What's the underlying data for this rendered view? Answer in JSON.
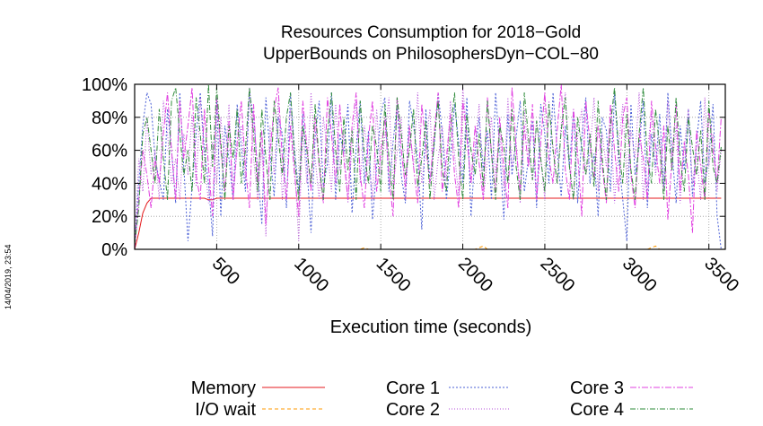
{
  "chart_data": {
    "type": "line",
    "title_lines": [
      "Resources Consumption for 2018−Gold",
      "UpperBounds on PhilosophersDyn−COL−80"
    ],
    "xlabel": "Execution time (seconds)",
    "ylabel": "",
    "xlim": [
      0,
      3600
    ],
    "ylim": [
      0,
      100
    ],
    "x_ticks": [
      500,
      1000,
      1500,
      2000,
      2500,
      3000,
      3500
    ],
    "y_ticks": [
      0,
      20,
      40,
      60,
      80,
      100
    ],
    "y_tick_labels": [
      "0%",
      "20%",
      "40%",
      "60%",
      "80%",
      "100%"
    ],
    "grid": true,
    "legend_position": "bottom",
    "x": [
      0,
      25,
      50,
      75,
      100,
      125,
      150,
      175,
      200,
      225,
      250,
      275,
      300,
      325,
      350,
      375,
      400,
      425,
      450,
      475,
      500,
      525,
      550,
      575,
      600,
      625,
      650,
      675,
      700,
      725,
      750,
      775,
      800,
      825,
      850,
      875,
      900,
      925,
      950,
      975,
      1000,
      1025,
      1050,
      1075,
      1100,
      1125,
      1150,
      1175,
      1200,
      1225,
      1250,
      1275,
      1300,
      1325,
      1350,
      1375,
      1400,
      1425,
      1450,
      1475,
      1500,
      1525,
      1550,
      1575,
      1600,
      1625,
      1650,
      1675,
      1700,
      1725,
      1750,
      1775,
      1800,
      1825,
      1850,
      1875,
      1900,
      1925,
      1950,
      1975,
      2000,
      2025,
      2050,
      2075,
      2100,
      2125,
      2150,
      2175,
      2200,
      2225,
      2250,
      2275,
      2300,
      2325,
      2350,
      2375,
      2400,
      2425,
      2450,
      2475,
      2500,
      2525,
      2550,
      2575,
      2600,
      2625,
      2650,
      2675,
      2700,
      2725,
      2750,
      2775,
      2800,
      2825,
      2850,
      2875,
      2900,
      2925,
      2950,
      2975,
      3000,
      3025,
      3050,
      3075,
      3100,
      3125,
      3150,
      3175,
      3200,
      3225,
      3250,
      3275,
      3300,
      3325,
      3350,
      3375,
      3400,
      3425,
      3450,
      3475,
      3500,
      3525,
      3550,
      3575
    ],
    "series": [
      {
        "name": "Memory",
        "color": "#e41a1c",
        "dash": "",
        "values": [
          0,
          10,
          22,
          28,
          31,
          31,
          31,
          31,
          31,
          31,
          31,
          31,
          31,
          31,
          31,
          31,
          31,
          31,
          30,
          30,
          31,
          31,
          31,
          31,
          31,
          31,
          31,
          31,
          31,
          31,
          31,
          31,
          31,
          31,
          31,
          31,
          31,
          31,
          31,
          31,
          31,
          31,
          31,
          31,
          31,
          31,
          31,
          31,
          31,
          31,
          31,
          31,
          31,
          31,
          31,
          31,
          31,
          31,
          31,
          31,
          31,
          31,
          31,
          31,
          31,
          31,
          31,
          31,
          31,
          31,
          31,
          31,
          31,
          31,
          31,
          31,
          31,
          31,
          31,
          31,
          31,
          31,
          31,
          31,
          31,
          31,
          31,
          31,
          31,
          31,
          31,
          31,
          31,
          31,
          31,
          31,
          31,
          31,
          31,
          31,
          31,
          31,
          31,
          31,
          31,
          31,
          31,
          31,
          31,
          31,
          31,
          31,
          31,
          31,
          31,
          31,
          31,
          31,
          31,
          31,
          31,
          31,
          31,
          31,
          31,
          31,
          31,
          31,
          31,
          31,
          31,
          31,
          31,
          31,
          31,
          31,
          31,
          31,
          31,
          31,
          31,
          31,
          31,
          31
        ]
      },
      {
        "name": "I/O wait",
        "color": "#ff9900",
        "dash": "4,3",
        "values": [
          0,
          0,
          0,
          0,
          0,
          0,
          0,
          0,
          0,
          0,
          0,
          0,
          0,
          0,
          0,
          0,
          0,
          0,
          0,
          0,
          0,
          0,
          0,
          0,
          0,
          0,
          0,
          0,
          0,
          0,
          0,
          0,
          0,
          0,
          0,
          0,
          0,
          0,
          0,
          0,
          0,
          0,
          0,
          0,
          0,
          0,
          0,
          0,
          0,
          0,
          0,
          0,
          0,
          0,
          0,
          0,
          1,
          0,
          0,
          0,
          0,
          0,
          0,
          0,
          0,
          0,
          0,
          0,
          0,
          0,
          0,
          0,
          0,
          0,
          0,
          0,
          0,
          0,
          0,
          0,
          0,
          0,
          0,
          0,
          1,
          2,
          0,
          0,
          0,
          0,
          0,
          0,
          0,
          0,
          0,
          0,
          0,
          0,
          0,
          0,
          0,
          0,
          0,
          0,
          0,
          0,
          0,
          0,
          0,
          0,
          0,
          0,
          0,
          0,
          0,
          0,
          0,
          0,
          0,
          0,
          0,
          0,
          0,
          0,
          0,
          0,
          1,
          2,
          0,
          0,
          0,
          0,
          0,
          0,
          0,
          0,
          0,
          0,
          0,
          0,
          0,
          0,
          0,
          0
        ]
      },
      {
        "name": "Core 1",
        "color": "#4a5fd6",
        "dash": "2,2",
        "values": [
          2,
          40,
          75,
          95,
          88,
          55,
          42,
          30,
          85,
          60,
          28,
          95,
          50,
          5,
          38,
          70,
          95,
          60,
          40,
          8,
          92,
          20,
          75,
          55,
          30,
          88,
          62,
          35,
          95,
          80,
          48,
          15,
          92,
          58,
          32,
          80,
          70,
          25,
          95,
          60,
          35,
          82,
          50,
          10,
          68,
          90,
          38,
          52,
          95,
          30,
          70,
          58,
          88,
          22,
          62,
          90,
          40,
          72,
          18,
          50,
          82,
          92,
          35,
          65,
          88,
          45,
          28,
          90,
          75,
          55,
          12,
          85,
          40,
          62,
          95,
          70,
          30,
          55,
          88,
          65,
          40,
          92,
          20,
          58,
          80,
          48,
          72,
          30,
          95,
          60,
          18,
          82,
          45,
          68,
          90,
          35,
          55,
          78,
          25,
          88,
          70,
          40,
          95,
          60,
          32,
          75,
          50,
          85,
          28,
          68,
          92,
          40,
          58,
          20,
          80,
          72,
          35,
          95,
          55,
          30,
          5,
          88,
          45,
          62,
          90,
          25,
          70,
          50,
          82,
          38,
          95,
          60,
          28,
          75,
          48,
          85,
          32,
          65,
          90,
          40,
          55,
          88,
          20,
          0
        ]
      },
      {
        "name": "Core 2",
        "color": "#b44fd9",
        "dash": "1,2",
        "values": [
          1,
          55,
          35,
          80,
          45,
          60,
          30,
          90,
          70,
          40,
          55,
          30,
          70,
          45,
          82,
          38,
          92,
          55,
          28,
          65,
          40,
          80,
          50,
          88,
          32,
          60,
          75,
          42,
          98,
          55,
          30,
          62,
          8,
          75,
          45,
          90,
          30,
          62,
          85,
          50,
          5,
          72,
          40,
          95,
          55,
          30,
          80,
          60,
          35,
          88,
          48,
          70,
          28,
          62,
          90,
          40,
          75,
          55,
          30,
          85,
          45,
          68,
          92,
          38,
          58,
          80,
          30,
          72,
          50,
          95,
          40,
          62,
          85,
          30,
          55,
          75,
          42,
          90,
          58,
          32,
          98,
          70,
          40,
          62,
          88,
          30,
          55,
          80,
          45,
          72,
          35,
          92,
          50,
          65,
          28,
          85,
          60,
          42,
          78,
          55,
          30,
          90,
          62,
          40,
          75,
          95,
          50,
          30,
          68,
          85,
          45,
          58,
          92,
          35,
          70,
          50,
          80,
          28,
          62,
          88,
          40,
          72,
          55,
          95,
          30,
          60,
          82,
          45,
          68,
          35,
          90,
          50,
          75,
          28,
          62,
          85,
          40,
          58,
          30,
          92,
          50,
          70,
          35,
          60
        ]
      },
      {
        "name": "Core 3",
        "color": "#e040e0",
        "dash": "7,2,2,2",
        "values": [
          0,
          30,
          60,
          45,
          25,
          55,
          40,
          70,
          95,
          60,
          30,
          90,
          55,
          75,
          98,
          45,
          30,
          85,
          50,
          20,
          92,
          60,
          35,
          78,
          30,
          65,
          90,
          50,
          25,
          88,
          40,
          72,
          15,
          60,
          85,
          98,
          55,
          30,
          75,
          45,
          20,
          90,
          62,
          35,
          80,
          50,
          28,
          92,
          70,
          40,
          88,
          55,
          30,
          75,
          95,
          45,
          25,
          68,
          90,
          35,
          58,
          80,
          45,
          20,
          92,
          60,
          38,
          75,
          50,
          28,
          88,
          62,
          40,
          70,
          95,
          35,
          55,
          82,
          45,
          25,
          90,
          68,
          40,
          75,
          52,
          30,
          92,
          58,
          35,
          80,
          48,
          25,
          98,
          62,
          35,
          75,
          50,
          88,
          30,
          65,
          95,
          55,
          40,
          72,
          100,
          48,
          30,
          85,
          58,
          20,
          90,
          65,
          42,
          75,
          50,
          28,
          88,
          60,
          35,
          80,
          92,
          45,
          25,
          70,
          55,
          30,
          90,
          62,
          40,
          75,
          18,
          55,
          88,
          35,
          65,
          45,
          10,
          72,
          50,
          30,
          85,
          60,
          40,
          80
        ]
      },
      {
        "name": "Core 4",
        "color": "#2e8b3a",
        "dash": "6,2,1,2",
        "values": [
          3,
          25,
          70,
          80,
          60,
          40,
          85,
          55,
          30,
          90,
          98,
          70,
          45,
          60,
          35,
          92,
          70,
          40,
          100,
          50,
          98,
          65,
          30,
          75,
          55,
          85,
          40,
          60,
          98,
          70,
          35,
          85,
          55,
          30,
          90,
          68,
          45,
          80,
          95,
          55,
          30,
          75,
          60,
          40,
          88,
          52,
          30,
          70,
          95,
          60,
          35,
          80,
          48,
          72,
          30,
          90,
          58,
          40,
          75,
          62,
          35,
          88,
          55,
          30,
          92,
          70,
          45,
          60,
          85,
          38,
          55,
          78,
          30,
          65,
          90,
          48,
          35,
          72,
          95,
          55,
          30,
          82,
          60,
          45,
          70,
          38,
          90,
          58,
          30,
          75,
          62,
          40,
          85,
          50,
          30,
          95,
          68,
          42,
          78,
          55,
          35,
          88,
          60,
          40,
          72,
          92,
          50,
          30,
          80,
          62,
          45,
          70,
          38,
          90,
          55,
          30,
          75,
          98,
          60,
          40,
          82,
          48,
          30,
          70,
          98,
          55,
          40,
          85,
          62,
          30,
          75,
          48,
          92,
          55,
          35,
          80,
          62,
          45,
          72,
          30,
          90,
          50,
          40,
          62
        ]
      }
    ]
  },
  "side_stamp": "14/04/2019, 23:54"
}
